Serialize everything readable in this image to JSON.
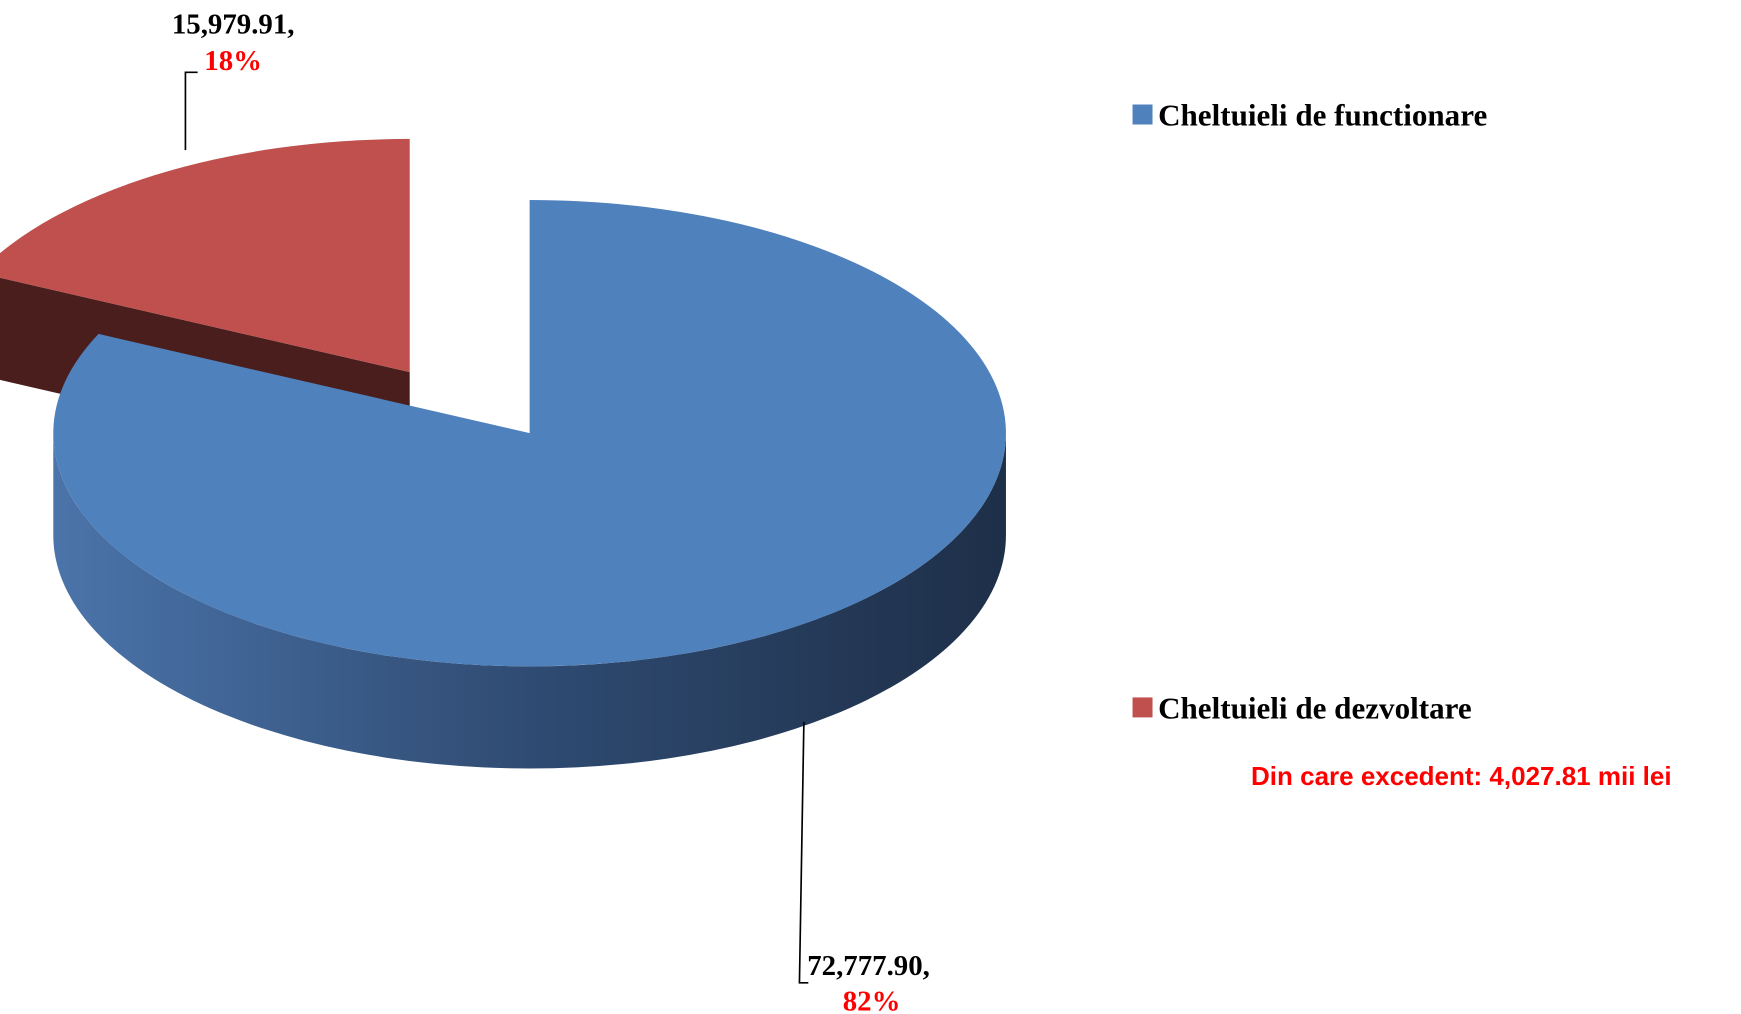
{
  "chart_data": {
    "type": "pie3d",
    "categories": [
      "Cheltuieli de functionare",
      "Cheltuieli de dezvoltare"
    ],
    "values": [
      72777.9,
      15979.91
    ],
    "value_labels": [
      "72,777.90,",
      "15,979.91,"
    ],
    "percent_labels": [
      "82%",
      "18%"
    ],
    "colors": [
      "#4f81bd",
      "#c0504d"
    ],
    "explode": [
      false,
      true
    ],
    "annotation": "Din care excedent: 4,027.81 mii lei"
  }
}
